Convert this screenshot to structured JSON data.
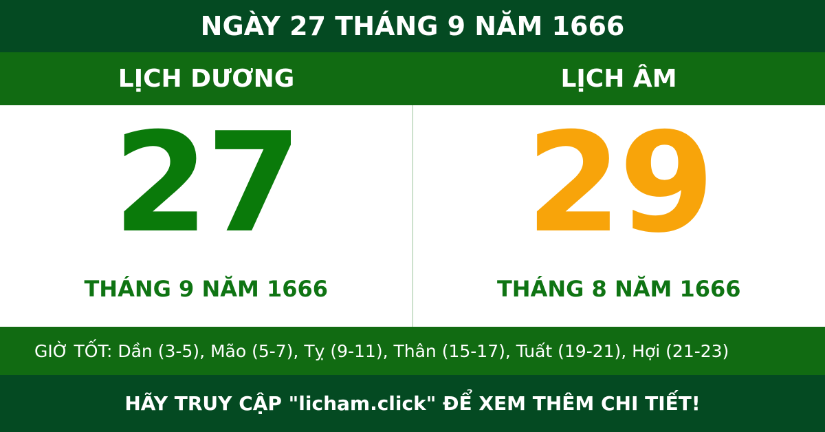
{
  "header": {
    "title": "NGÀY 27 THÁNG 9 NĂM 1666"
  },
  "solar": {
    "label": "LỊCH DƯƠNG",
    "day": "27",
    "month_year": "THÁNG 9 NĂM 1666"
  },
  "lunar": {
    "label": "LỊCH ÂM",
    "day": "29",
    "month_year": "THÁNG 8 NĂM 1666"
  },
  "good_hours": "GIỜ TỐT: Dần (3-5), Mão (5-7), Tỵ (9-11), Thân (15-17), Tuất (19-21), Hợi (21-23)",
  "footer": "HÃY TRUY CẬP \"licham.click\" ĐỂ XEM THÊM CHI TIẾT!"
}
